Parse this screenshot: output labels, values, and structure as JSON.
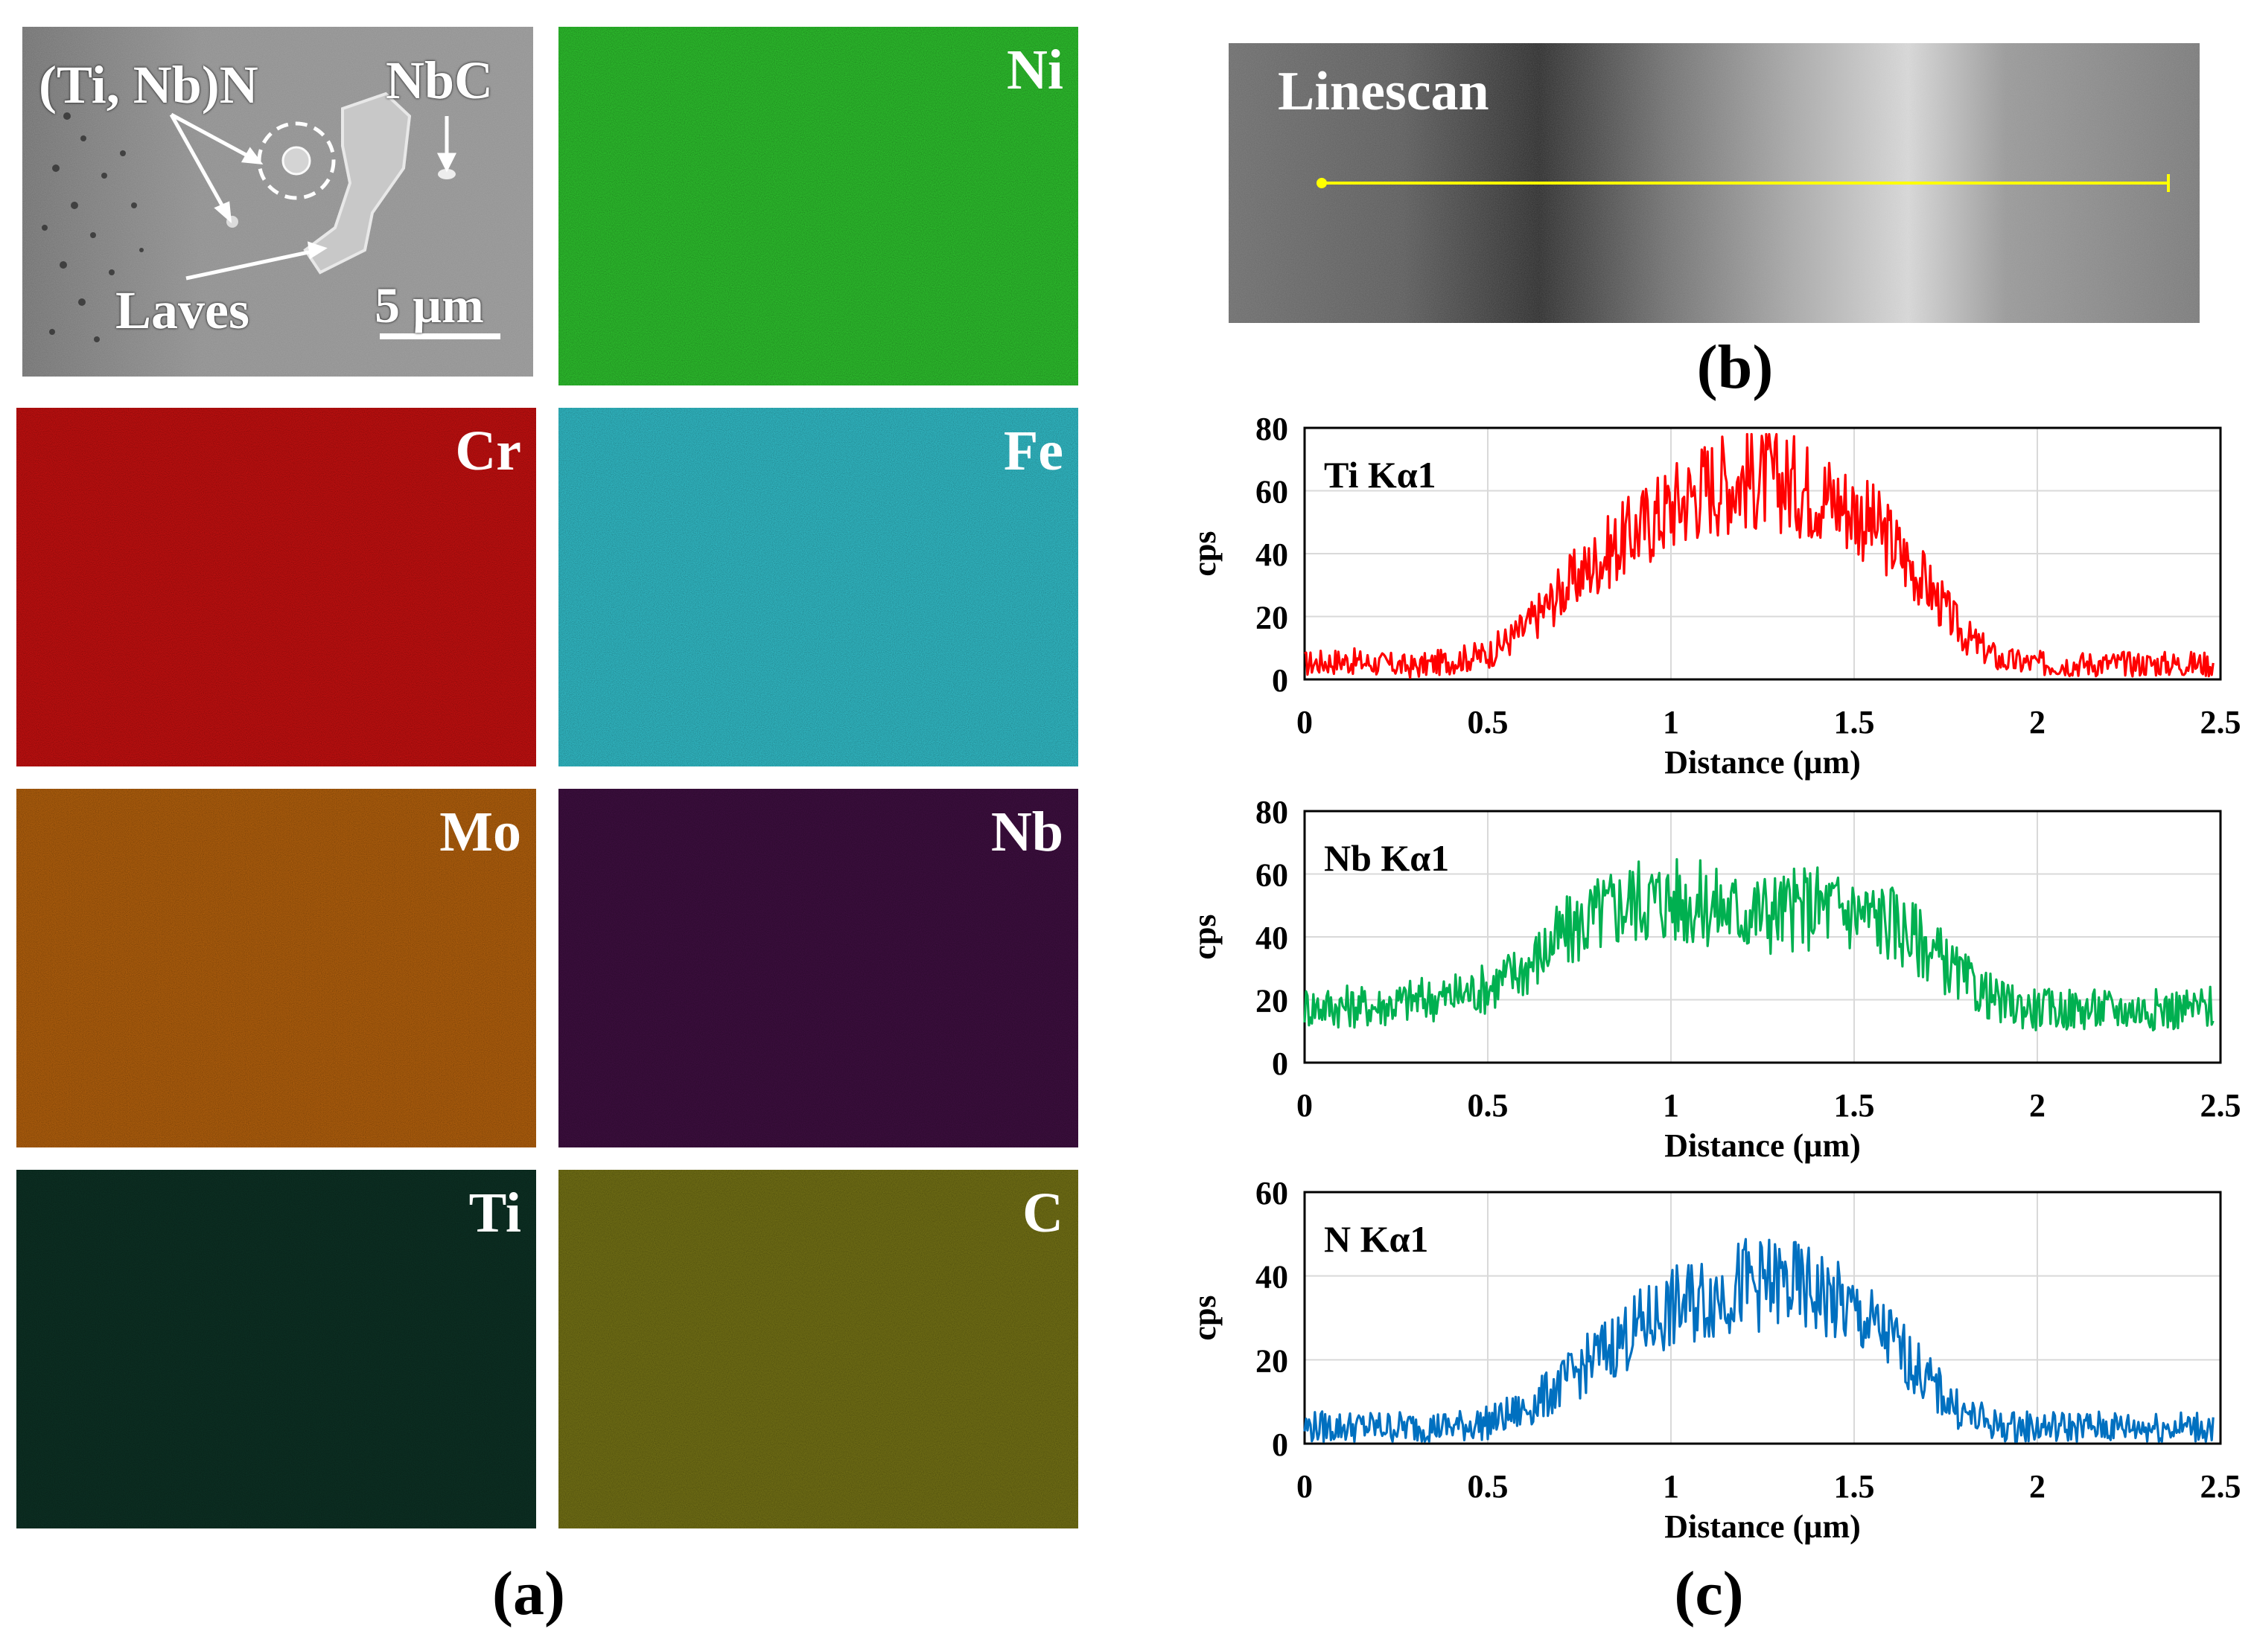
{
  "panel_a": {
    "label": "(a)",
    "sem": {
      "annotation_tinb": "(Ti, Nb)N",
      "annotation_nbc": "NbC",
      "annotation_laves": "Laves",
      "scale_bar": "5 µm"
    },
    "maps": [
      {
        "element": "Ni",
        "color": "#2bb52b",
        "text_color": "#ffffff"
      },
      {
        "element": "Cr",
        "color": "#b80f0f",
        "text_color": "#ffffff"
      },
      {
        "element": "Fe",
        "color": "#2fb1bc",
        "text_color": "#ffffff"
      },
      {
        "element": "Mo",
        "color": "#a75a0c",
        "text_color": "#ffffff"
      },
      {
        "element": "Nb",
        "color": "#3a0e3c",
        "text_color": "#ffffff"
      },
      {
        "element": "Ti",
        "color": "#0c2e22",
        "text_color": "#ffffff"
      },
      {
        "element": "C",
        "color": "#6c6a14",
        "text_color": "#ffffff"
      }
    ]
  },
  "panel_b": {
    "label": "(b)",
    "title": "Linescan"
  },
  "panel_c": {
    "label": "(c)"
  },
  "chart_data": [
    {
      "type": "line",
      "title": "Ti  Kα1",
      "xlabel": "Distance (µm)",
      "ylabel": "cps",
      "xlim": [
        0,
        2.5
      ],
      "ylim": [
        0,
        80
      ],
      "yticks": [
        0,
        20,
        40,
        60,
        80
      ],
      "xticks": [
        "0",
        "0.5",
        "1",
        "1.5",
        "2",
        "2.5"
      ],
      "color": "#ff0000",
      "x": [
        0,
        0.1,
        0.2,
        0.3,
        0.4,
        0.5,
        0.6,
        0.7,
        0.8,
        0.9,
        1.0,
        1.1,
        1.2,
        1.3,
        1.4,
        1.5,
        1.6,
        1.7,
        1.8,
        1.9,
        2.0,
        2.1,
        2.2,
        2.3,
        2.4,
        2.48
      ],
      "y": [
        5,
        6,
        5,
        4,
        6,
        8,
        16,
        28,
        38,
        47,
        55,
        62,
        64,
        63,
        60,
        54,
        44,
        30,
        14,
        6,
        5,
        5,
        5,
        5,
        5,
        5
      ]
    },
    {
      "type": "line",
      "title": "Nb  Kα1",
      "xlabel": "Distance (µm)",
      "ylabel": "cps",
      "xlim": [
        0,
        2.5
      ],
      "ylim": [
        0,
        80
      ],
      "yticks": [
        0,
        20,
        40,
        60,
        80
      ],
      "xticks": [
        "0",
        "0.5",
        "1",
        "1.5",
        "2",
        "2.5"
      ],
      "color": "#00b050",
      "x": [
        0,
        0.1,
        0.2,
        0.3,
        0.4,
        0.5,
        0.6,
        0.7,
        0.8,
        0.9,
        1.0,
        1.1,
        1.2,
        1.3,
        1.4,
        1.5,
        1.6,
        1.7,
        1.8,
        1.9,
        2.0,
        2.1,
        2.2,
        2.3,
        2.4,
        2.48
      ],
      "y": [
        18,
        18,
        18,
        20,
        21,
        24,
        30,
        40,
        47,
        52,
        52,
        50,
        48,
        48,
        50,
        48,
        45,
        37,
        26,
        19,
        17,
        17,
        17,
        17,
        17,
        18
      ]
    },
    {
      "type": "line",
      "title": "N  Kα1",
      "xlabel": "Distance (µm)",
      "ylabel": "cps",
      "xlim": [
        0,
        2.5
      ],
      "ylim": [
        0,
        60
      ],
      "yticks": [
        0,
        20,
        40,
        60
      ],
      "xticks": [
        "0",
        "0.5",
        "1",
        "1.5",
        "2",
        "2.5"
      ],
      "color": "#0070c0",
      "x": [
        0,
        0.1,
        0.2,
        0.3,
        0.4,
        0.5,
        0.6,
        0.7,
        0.8,
        0.9,
        1.0,
        1.1,
        1.2,
        1.3,
        1.4,
        1.5,
        1.6,
        1.7,
        1.8,
        1.9,
        2.0,
        2.1,
        2.2,
        2.3,
        2.4,
        2.48
      ],
      "y": [
        4,
        4,
        4,
        4,
        4,
        5,
        8,
        14,
        21,
        27,
        32,
        35,
        38,
        38,
        36,
        31,
        25,
        15,
        7,
        4,
        4,
        4,
        4,
        4,
        4,
        4
      ]
    }
  ]
}
